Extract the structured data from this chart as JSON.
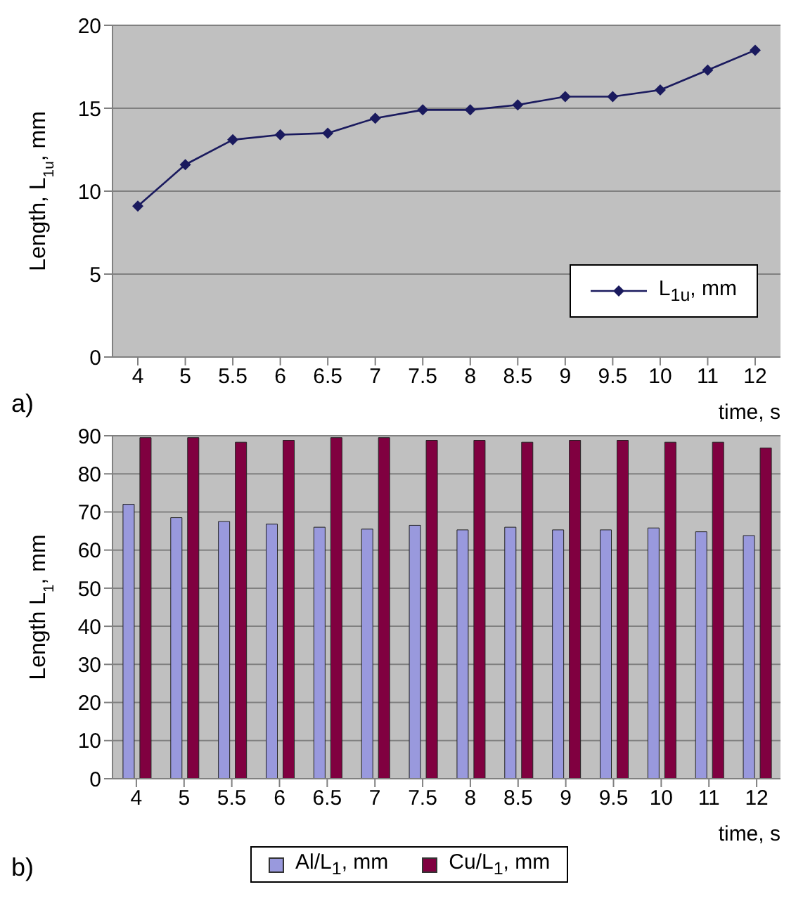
{
  "chart_data": [
    {
      "type": "line",
      "categories": [
        "4",
        "5",
        "5.5",
        "6",
        "6.5",
        "7",
        "7.5",
        "8",
        "8.5",
        "9",
        "9.5",
        "10",
        "11",
        "12"
      ],
      "series": [
        {
          "name": "L$_{1u}$, mm",
          "color": "#1a1a5e",
          "values": [
            9.1,
            11.6,
            13.1,
            13.4,
            13.5,
            14.4,
            14.9,
            14.9,
            15.2,
            15.7,
            15.7,
            16.1,
            17.3,
            18.5
          ]
        }
      ],
      "xlabel": "time, s",
      "ylabel": "Length, L$_{1u}$, mm",
      "ylim": [
        0,
        20
      ],
      "yticks": [
        0,
        5,
        10,
        15,
        20
      ],
      "grid": "y",
      "legend": "bottom right",
      "marker": "diamond",
      "annotations": [
        "a)"
      ]
    },
    {
      "type": "bar",
      "categories": [
        "4",
        "5",
        "5.5",
        "6",
        "6.5",
        "7",
        "7.5",
        "8",
        "8.5",
        "9",
        "9.5",
        "10",
        "11",
        "12"
      ],
      "series": [
        {
          "name": "Al/L$_{1}$, mm",
          "color": "#9999dd",
          "values": [
            72,
            68.5,
            67.5,
            66.8,
            66,
            65.5,
            66.5,
            65.3,
            66,
            65.3,
            65.3,
            65.8,
            64.8,
            63.8
          ]
        },
        {
          "name": "Cu/L$_{1}$, mm",
          "color": "#800040",
          "values": [
            89.5,
            89.5,
            88.3,
            88.8,
            89.5,
            89.5,
            88.8,
            88.8,
            88.3,
            88.8,
            88.8,
            88.3,
            88.3,
            86.8
          ]
        }
      ],
      "xlabel": "time, s",
      "ylabel": "Length L$_{1}$, mm",
      "ylim": [
        0,
        90
      ],
      "yticks": [
        0,
        10,
        20,
        30,
        40,
        50,
        60,
        70,
        80,
        90
      ],
      "grid": "y",
      "legend": "bottom",
      "annotations": [
        "b)"
      ]
    }
  ]
}
